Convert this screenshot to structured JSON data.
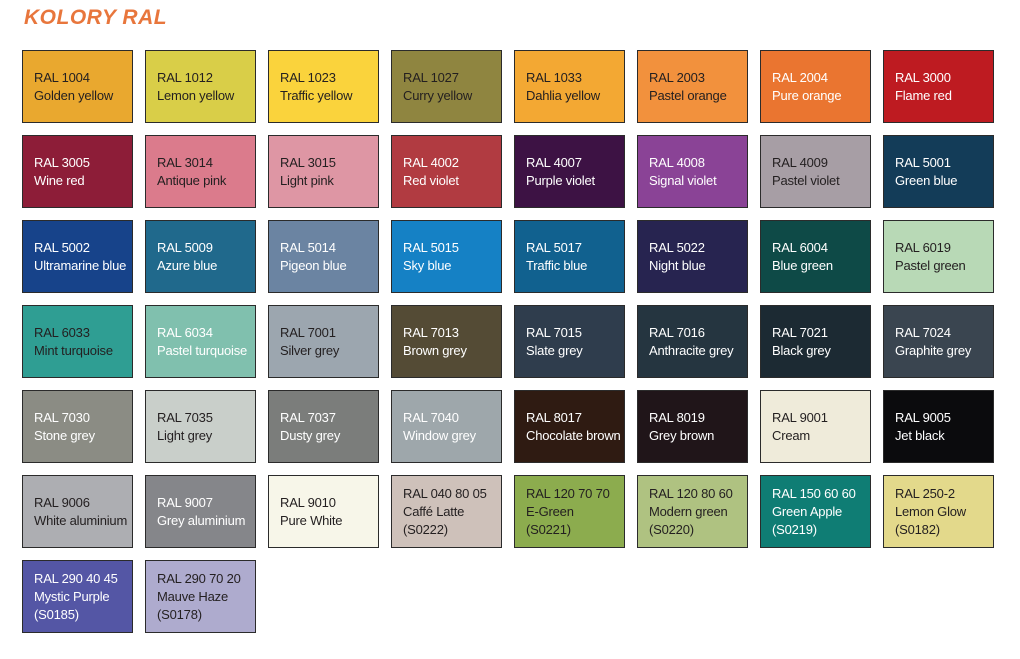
{
  "title": "KOLORY RAL",
  "colors": {
    "title": "#E8763C",
    "text_dark": "#231F20",
    "text_light": "#FFFFFF",
    "swatch_border": "#2B2B2B",
    "background": "#FFFFFF"
  },
  "swatches": [
    {
      "code": "RAL 1004",
      "name": "Golden yellow",
      "hex": "#E9A82F",
      "text": "dark"
    },
    {
      "code": "RAL 1012",
      "name": "Lemon yellow",
      "hex": "#D9CE48",
      "text": "dark"
    },
    {
      "code": "RAL 1023",
      "name": "Traffic yellow",
      "hex": "#FAD33C",
      "text": "dark"
    },
    {
      "code": "RAL 1027",
      "name": "Curry yellow",
      "hex": "#8F8540",
      "text": "dark"
    },
    {
      "code": "RAL 1033",
      "name": "Dahlia yellow",
      "hex": "#F3A833",
      "text": "dark"
    },
    {
      "code": "RAL 2003",
      "name": "Pastel orange",
      "hex": "#F2913D",
      "text": "dark"
    },
    {
      "code": "RAL 2004",
      "name": "Pure orange",
      "hex": "#EA7530",
      "text": "light"
    },
    {
      "code": "RAL 3000",
      "name": "Flame red",
      "hex": "#BE1B21",
      "text": "light"
    },
    {
      "code": "RAL 3005",
      "name": "Wine red",
      "hex": "#8D1D38",
      "text": "light"
    },
    {
      "code": "RAL 3014",
      "name": "Antique pink",
      "hex": "#DB7B8C",
      "text": "dark"
    },
    {
      "code": "RAL 3015",
      "name": "Light pink",
      "hex": "#DE96A4",
      "text": "dark"
    },
    {
      "code": "RAL 4002",
      "name": "Red violet",
      "hex": "#B13B41",
      "text": "light"
    },
    {
      "code": "RAL 4007",
      "name": "Purple violet",
      "hex": "#3D1244",
      "text": "light"
    },
    {
      "code": "RAL 4008",
      "name": "Signal violet",
      "hex": "#8A4396",
      "text": "light"
    },
    {
      "code": "RAL 4009",
      "name": "Pastel violet",
      "hex": "#A79EA5",
      "text": "dark"
    },
    {
      "code": "RAL 5001",
      "name": "Green blue",
      "hex": "#133C58",
      "text": "light"
    },
    {
      "code": "RAL 5002",
      "name": "Ultramarine blue",
      "hex": "#17438A",
      "text": "light"
    },
    {
      "code": "RAL 5009",
      "name": "Azure blue",
      "hex": "#20698C",
      "text": "light"
    },
    {
      "code": "RAL 5014",
      "name": "Pigeon blue",
      "hex": "#6B84A2",
      "text": "light"
    },
    {
      "code": "RAL 5015",
      "name": "Sky blue",
      "hex": "#1581C5",
      "text": "light"
    },
    {
      "code": "RAL 5017",
      "name": "Traffic blue",
      "hex": "#11618F",
      "text": "light"
    },
    {
      "code": "RAL 5022",
      "name": "Night blue",
      "hex": "#272450",
      "text": "light"
    },
    {
      "code": "RAL 6004",
      "name": "Blue green",
      "hex": "#0E4A47",
      "text": "light"
    },
    {
      "code": "RAL 6019",
      "name": "Pastel green",
      "hex": "#B8D9B6",
      "text": "dark"
    },
    {
      "code": "RAL 6033",
      "name": "Mint turquoise",
      "hex": "#2F9E93",
      "text": "dark"
    },
    {
      "code": "RAL 6034",
      "name": "Pastel turquoise",
      "hex": "#80C0AE",
      "text": "light"
    },
    {
      "code": "RAL 7001",
      "name": "Silver grey",
      "hex": "#9CA6AF",
      "text": "dark"
    },
    {
      "code": "RAL 7013",
      "name": "Brown grey",
      "hex": "#544B35",
      "text": "light"
    },
    {
      "code": "RAL 7015",
      "name": "Slate grey",
      "hex": "#2F3D4D",
      "text": "light"
    },
    {
      "code": "RAL 7016",
      "name": "Anthracite grey",
      "hex": "#253540",
      "text": "light"
    },
    {
      "code": "RAL 7021",
      "name": "Black grey",
      "hex": "#1C2A33",
      "text": "light"
    },
    {
      "code": "RAL 7024",
      "name": "Graphite grey",
      "hex": "#3A4550",
      "text": "light"
    },
    {
      "code": "RAL 7030",
      "name": "Stone grey",
      "hex": "#8B8C84",
      "text": "light"
    },
    {
      "code": "RAL 7035",
      "name": "Light grey",
      "hex": "#C9CFCA",
      "text": "dark"
    },
    {
      "code": "RAL 7037",
      "name": "Dusty grey",
      "hex": "#7B7D7B",
      "text": "light"
    },
    {
      "code": "RAL 7040",
      "name": "Window grey",
      "hex": "#9EA7AB",
      "text": "light"
    },
    {
      "code": "RAL 8017",
      "name": "Chocolate brown",
      "hex": "#2F1B12",
      "text": "light"
    },
    {
      "code": "RAL 8019",
      "name": "Grey brown",
      "hex": "#201519",
      "text": "light"
    },
    {
      "code": "RAL 9001",
      "name": "Cream",
      "hex": "#EFEBDA",
      "text": "dark"
    },
    {
      "code": "RAL 9005",
      "name": "Jet black",
      "hex": "#0B0B0D",
      "text": "light"
    },
    {
      "code": "RAL 9006",
      "name": "White aluminium",
      "hex": "#ADAEB2",
      "text": "dark"
    },
    {
      "code": "RAL 9007",
      "name": "Grey aluminium",
      "hex": "#85868A",
      "text": "light"
    },
    {
      "code": "RAL 9010",
      "name": "Pure White",
      "hex": "#F7F6E9",
      "text": "dark"
    },
    {
      "code": "RAL 040 80 05",
      "name": "Caffé Latte",
      "suffix": "(S0222)",
      "hex": "#CEC1BA",
      "text": "dark"
    },
    {
      "code": "RAL 120 70 70",
      "name": "E-Green",
      "suffix": "(S0221)",
      "hex": "#8CAC4E",
      "text": "dark"
    },
    {
      "code": "RAL 120 80 60",
      "name": "Modern green",
      "suffix": "(S0220)",
      "hex": "#AFC281",
      "text": "dark"
    },
    {
      "code": "RAL 150 60 60",
      "name": "Green Apple",
      "suffix": "(S0219)",
      "hex": "#0F7D74",
      "text": "light"
    },
    {
      "code": "RAL 250-2",
      "name": "Lemon Glow",
      "suffix": "(S0182)",
      "hex": "#E3D98B",
      "text": "dark"
    },
    {
      "code": "RAL 290 40 45",
      "name": "Mystic Purple",
      "suffix": "(S0185)",
      "hex": "#5456A5",
      "text": "light"
    },
    {
      "code": "RAL 290 70 20",
      "name": "Mauve Haze",
      "suffix": "(S0178)",
      "hex": "#AEABCE",
      "text": "dark"
    }
  ]
}
